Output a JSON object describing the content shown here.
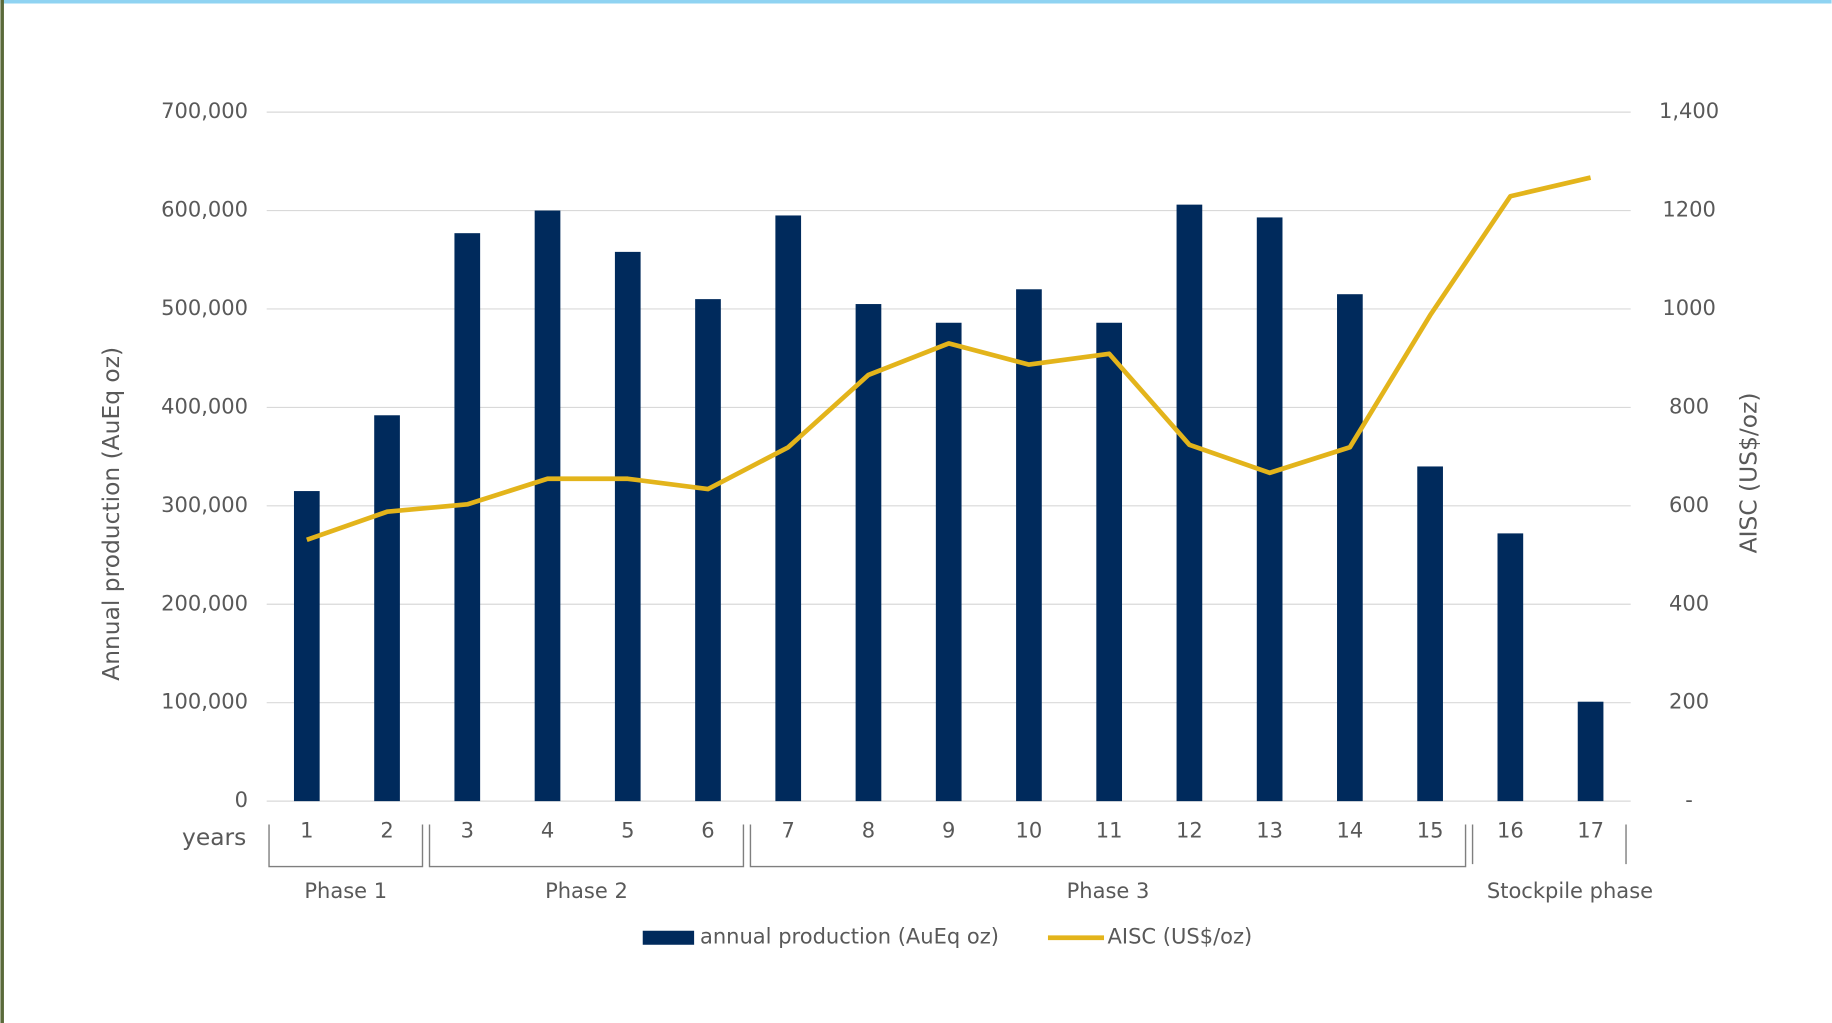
{
  "chart_data": {
    "type": "bar-line",
    "x_label": "years",
    "y_label": "Annual production (AuEq oz)",
    "y2_label": "AISC (US$/oz)",
    "categories": [
      "1",
      "2",
      "3",
      "4",
      "5",
      "6",
      "7",
      "8",
      "9",
      "10",
      "11",
      "12",
      "13",
      "14",
      "15",
      "16",
      "17"
    ],
    "phase_labels": [
      "Phase 1",
      "Phase 2",
      "Phase 3",
      "Stockpile phase"
    ],
    "series": [
      {
        "name": "annual production (AuEq oz)",
        "type": "bar",
        "color": "#002a5c",
        "values": [
          315000,
          392000,
          577000,
          600000,
          558000,
          510000,
          595000,
          505000,
          486000,
          520000,
          486000,
          606000,
          593000,
          515000,
          340000,
          272000,
          101000
        ]
      },
      {
        "name": "AISC (US$/oz)",
        "type": "line",
        "axis": "y2",
        "color": "#e3b41b",
        "values": [
          531,
          588,
          603,
          655,
          655,
          634,
          719,
          866,
          930,
          887,
          909,
          724,
          667,
          719,
          987,
          1229,
          1267
        ]
      }
    ],
    "ylim": [
      0,
      700000
    ],
    "yticks": [
      0,
      {
        "value": 100000,
        "label": "100,000"
      },
      {
        "value": 200000,
        "label": "200,000"
      },
      {
        "value": 300000,
        "label": "300,000"
      },
      {
        "value": 400000,
        "label": "400,000"
      },
      {
        "value": 500000,
        "label": "500,000"
      },
      {
        "value": 600000,
        "label": "600,000"
      },
      {
        "value": 700000,
        "label": "700,000"
      }
    ],
    "y2lim": [
      0,
      1400
    ],
    "y2ticks": [
      {
        "value": 0,
        "label": "-"
      },
      200,
      400,
      600,
      800,
      1000,
      1200,
      {
        "value": 1400,
        "label": "1,400"
      }
    ],
    "grid": true,
    "legend": "bottom"
  }
}
